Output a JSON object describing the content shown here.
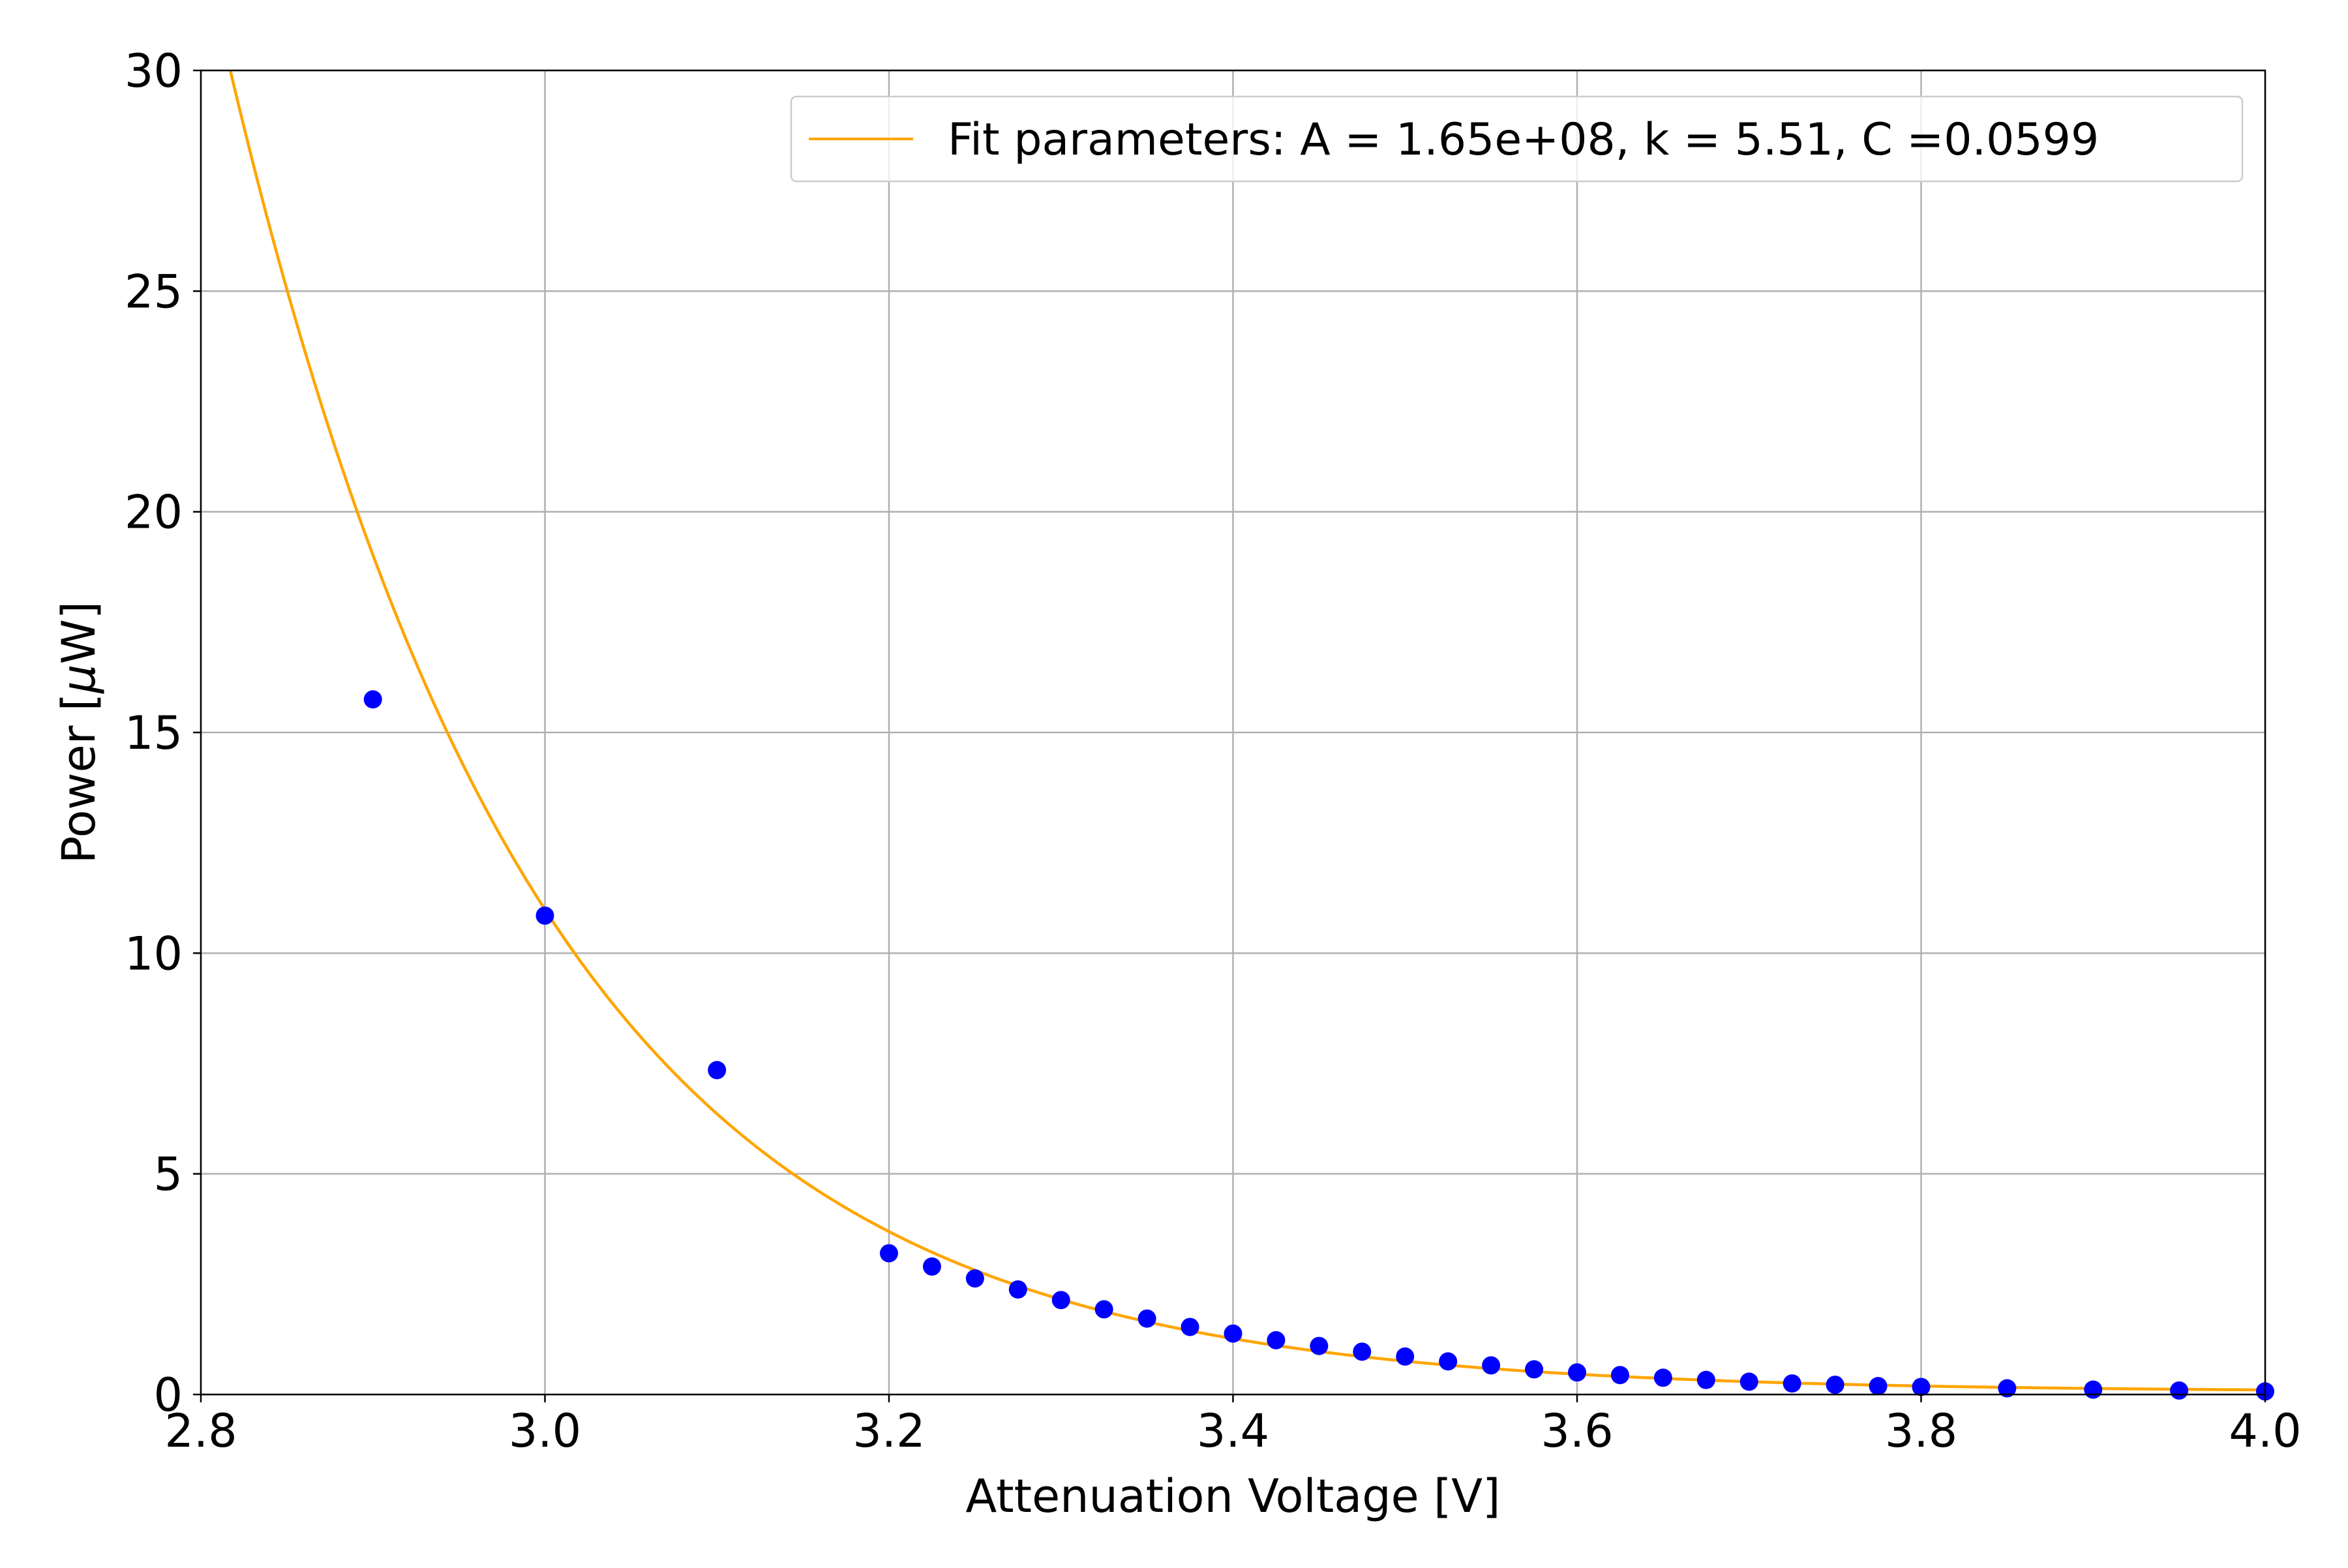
{
  "chart_data": {
    "type": "scatter",
    "title": "",
    "xlabel": "Attenuation Voltage [V]",
    "ylabel_prefix": "Power [",
    "ylabel_mu": "μ",
    "ylabel_suffix": "W]",
    "xlim": [
      2.8,
      4.0
    ],
    "ylim": [
      0,
      30
    ],
    "x_ticks": [
      2.8,
      3.0,
      3.2,
      3.4,
      3.6,
      3.8,
      4.0
    ],
    "x_tick_labels": [
      "2.8",
      "3.0",
      "3.2",
      "3.4",
      "3.6",
      "3.8",
      "4.0"
    ],
    "y_ticks": [
      0,
      5,
      10,
      15,
      20,
      25,
      30
    ],
    "y_tick_labels": [
      "0",
      "5",
      "10",
      "15",
      "20",
      "25",
      "30"
    ],
    "grid": true,
    "legend": {
      "placement": "top-right",
      "entries": [
        "Fit parameters: A = 1.65e+08, k = 5.51, C =0.0599"
      ]
    },
    "series": [
      {
        "kind": "scatter",
        "color": "#0000ff",
        "x": [
          2.9,
          3.0,
          3.1,
          3.2,
          3.225,
          3.25,
          3.275,
          3.3,
          3.325,
          3.35,
          3.375,
          3.4,
          3.425,
          3.45,
          3.475,
          3.5,
          3.525,
          3.55,
          3.575,
          3.6,
          3.625,
          3.65,
          3.675,
          3.7,
          3.725,
          3.75,
          3.775,
          3.8,
          3.85,
          3.9,
          3.95,
          4.0
        ],
        "y": [
          15.75,
          10.85,
          7.35,
          3.2,
          2.9,
          2.63,
          2.38,
          2.14,
          1.93,
          1.72,
          1.53,
          1.38,
          1.23,
          1.1,
          0.97,
          0.86,
          0.75,
          0.66,
          0.57,
          0.5,
          0.44,
          0.38,
          0.33,
          0.29,
          0.25,
          0.22,
          0.19,
          0.17,
          0.14,
          0.11,
          0.09,
          0.07
        ]
      },
      {
        "kind": "line",
        "name": "Fit parameters: A = 1.65e+08, k = 5.51, C =0.0599",
        "color": "#ffa500",
        "model": "y = A * exp(-k * x) + C",
        "A": 165000000,
        "k": 5.51,
        "C": 0.0599
      }
    ]
  }
}
